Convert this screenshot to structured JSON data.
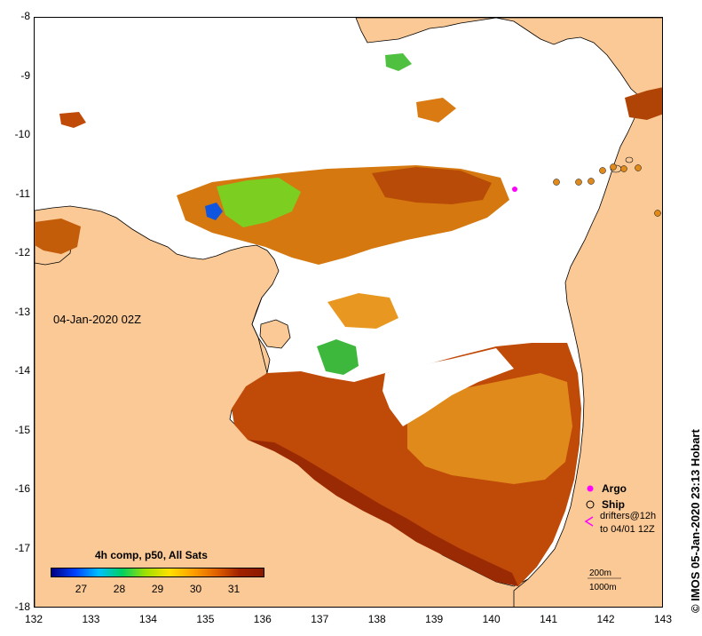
{
  "map": {
    "date_label": "04-Jan-2020 02Z",
    "colorbar": {
      "title": "4h comp, p50, All Sats",
      "ticks": [
        "27",
        "28",
        "29",
        "30",
        "31"
      ],
      "range": [
        26.2,
        31.8
      ],
      "colors": [
        "#000080",
        "#0040ff",
        "#00c0ff",
        "#00d060",
        "#a0e000",
        "#ffe000",
        "#ffa000",
        "#e06000",
        "#a02000",
        "#8b1a00"
      ]
    },
    "lon_ticks": [
      "132",
      "133",
      "134",
      "135",
      "136",
      "137",
      "138",
      "139",
      "140",
      "141",
      "142",
      "143"
    ],
    "lat_ticks": [
      "-8",
      "-9",
      "-10",
      "-11",
      "-12",
      "-13",
      "-14",
      "-15",
      "-16",
      "-17",
      "-18"
    ],
    "extent": {
      "lon": [
        132,
        143
      ],
      "lat": [
        -18,
        -8
      ]
    },
    "legend": {
      "argo": "Argo",
      "ship": "Ship",
      "drifters": "drifters@12h to 04/01 12Z",
      "argo_color": "#ff00ff",
      "drifter_color": "#ff00ff"
    },
    "scale_labels": [
      "200m",
      "1000m"
    ],
    "copyright": "© IMOS 05-Jan-2020 23:13 Hobart",
    "land_color": "#fbc996",
    "cloud_color": "#ffffff"
  }
}
